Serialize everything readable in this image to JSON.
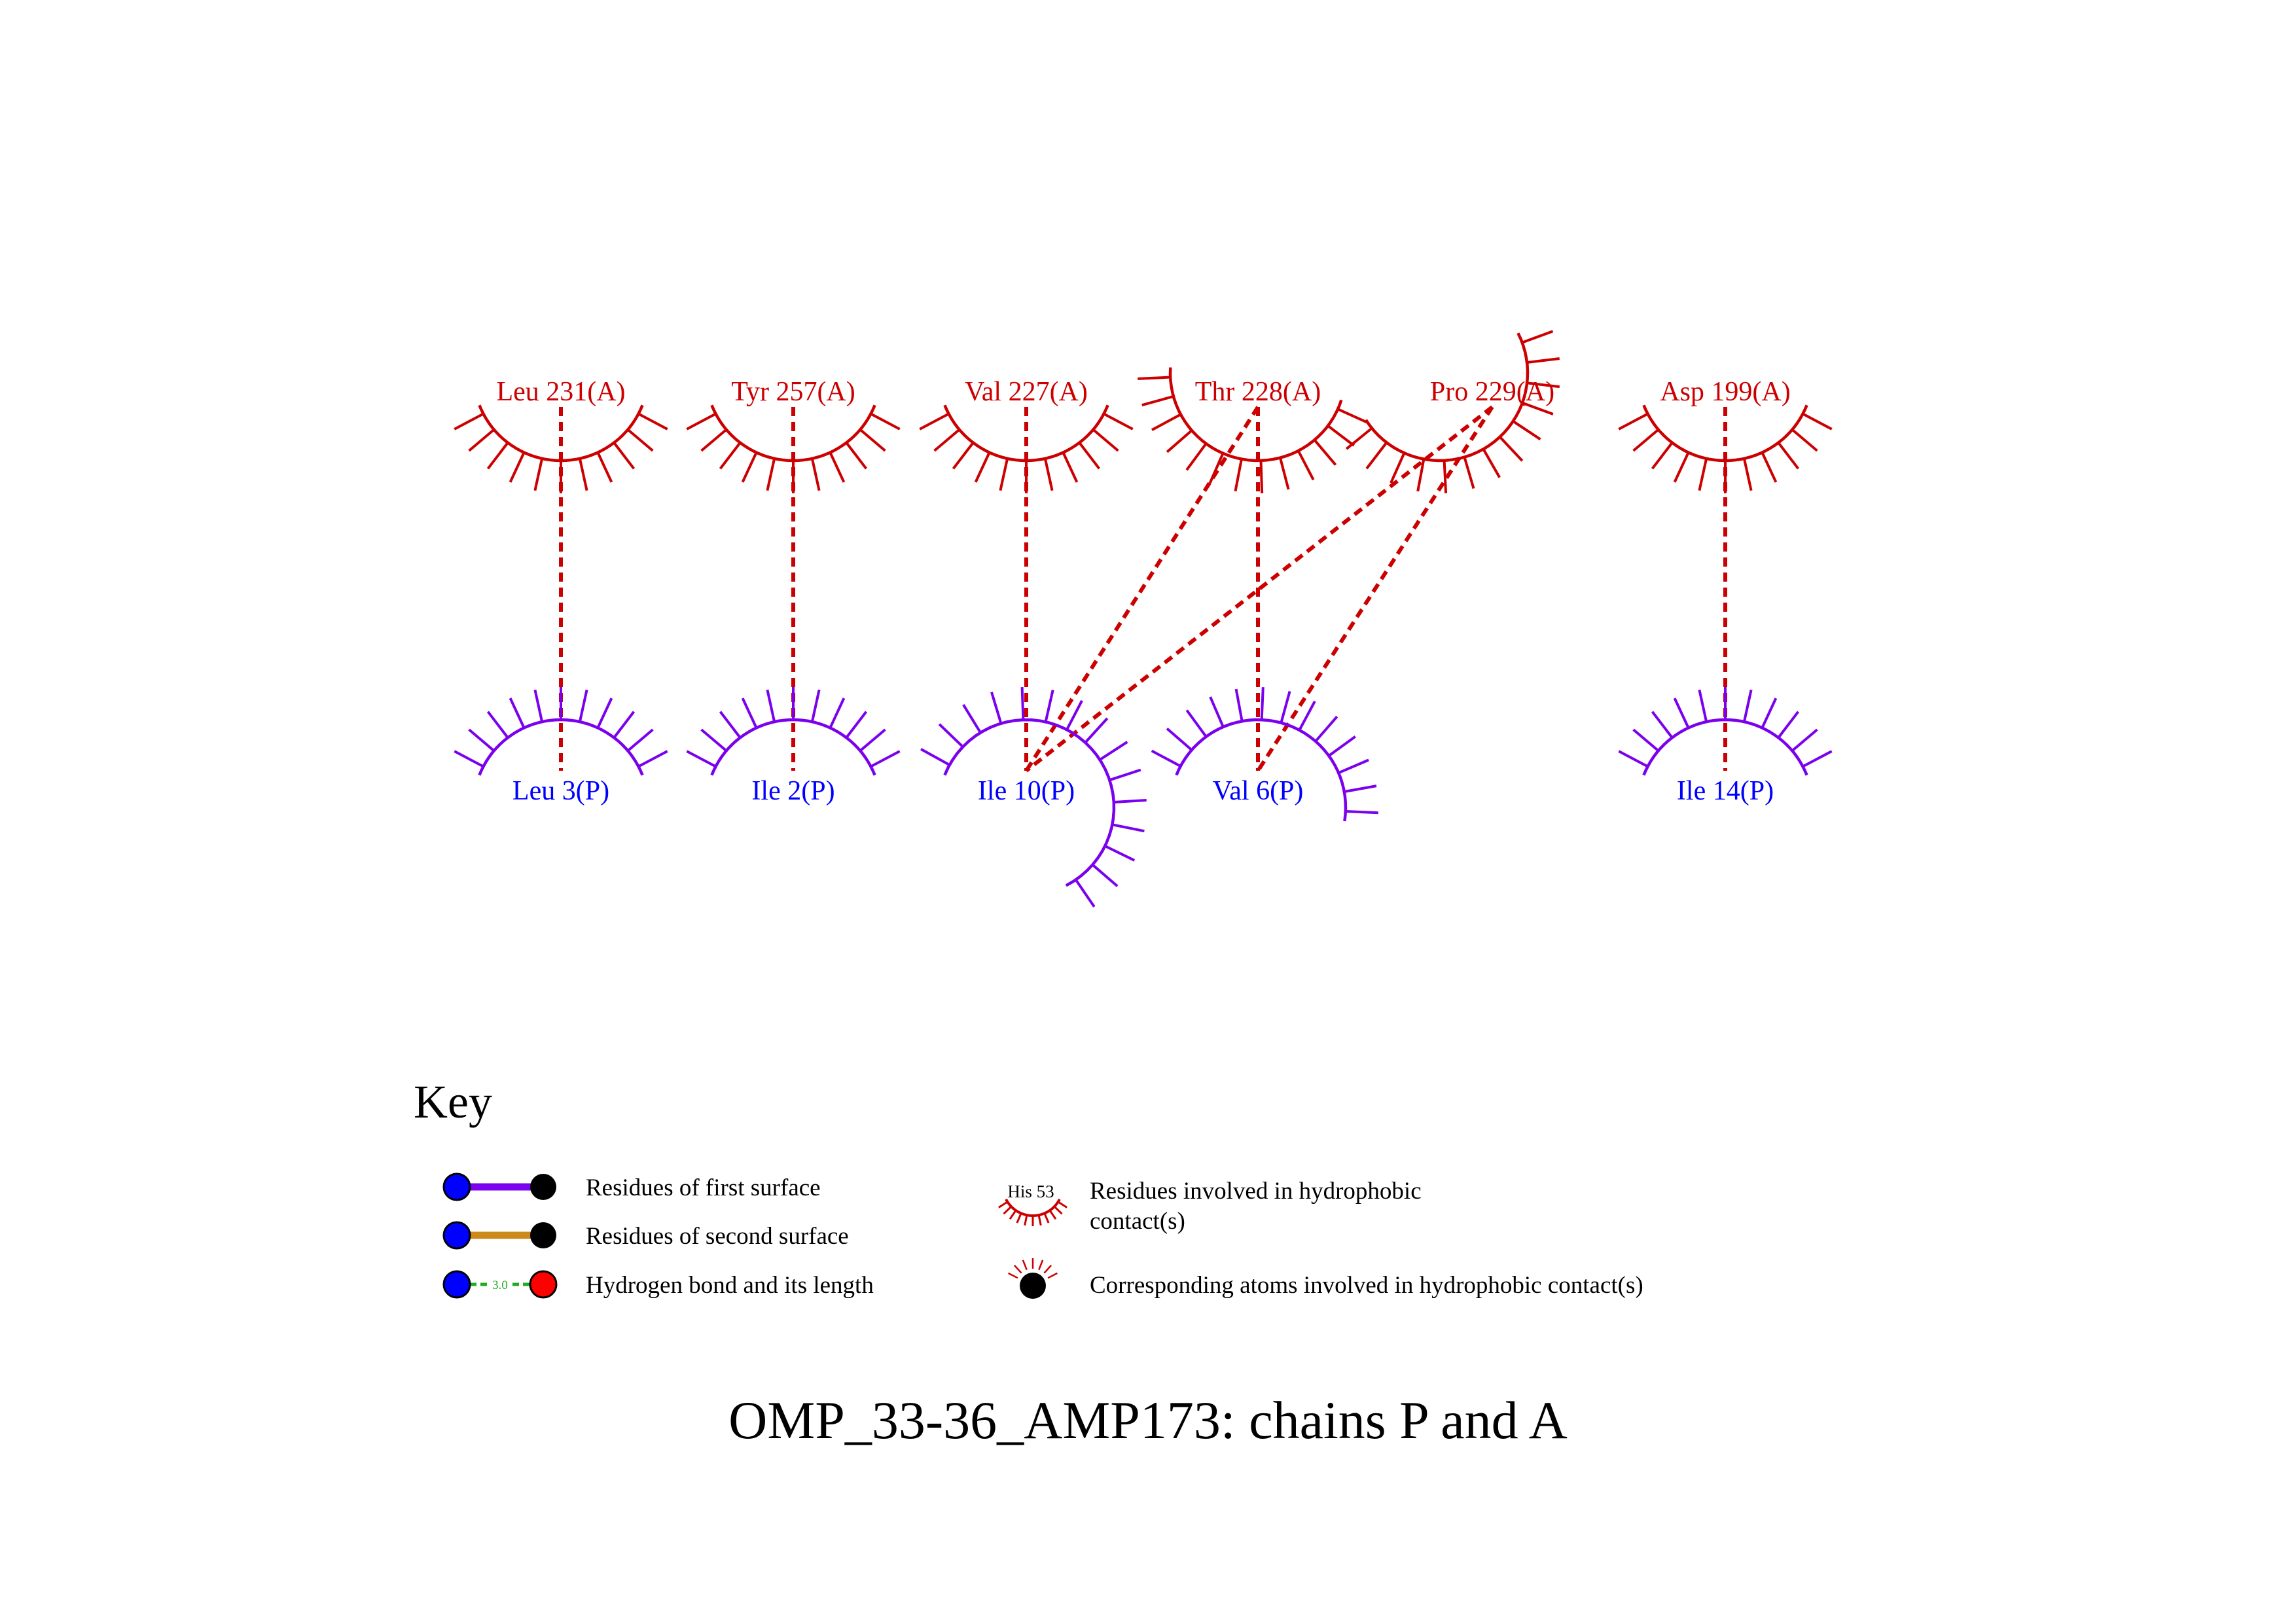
{
  "colors": {
    "chain_a": "#cc0000",
    "chain_p": "#0000ff",
    "arc_p": "#7a00ee",
    "contact_line": "#cc0000",
    "second_surface": "#cc8a1a",
    "hbond": "#22aa22",
    "black": "#000000"
  },
  "residues_a": [
    {
      "id": "leu231",
      "label": "Leu 231(A)"
    },
    {
      "id": "tyr257",
      "label": "Tyr 257(A)"
    },
    {
      "id": "val227",
      "label": "Val 227(A)"
    },
    {
      "id": "thr228",
      "label": "Thr 228(A)"
    },
    {
      "id": "pro229",
      "label": "Pro 229(A)"
    },
    {
      "id": "asp199",
      "label": "Asp 199(A)"
    }
  ],
  "residues_p": [
    {
      "id": "leu3",
      "label": "Leu 3(P)"
    },
    {
      "id": "ile2",
      "label": "Ile 2(P)"
    },
    {
      "id": "ile10",
      "label": "Ile 10(P)"
    },
    {
      "id": "val6",
      "label": "Val 6(P)"
    },
    {
      "id": "ile14",
      "label": "Ile 14(P)"
    }
  ],
  "contacts": [
    [
      "leu231",
      "leu3"
    ],
    [
      "tyr257",
      "ile2"
    ],
    [
      "val227",
      "ile10"
    ],
    [
      "thr228",
      "ile10"
    ],
    [
      "thr228",
      "val6"
    ],
    [
      "pro229",
      "ile10"
    ],
    [
      "pro229",
      "val6"
    ],
    [
      "asp199",
      "ile14"
    ]
  ],
  "key": {
    "heading": "Key",
    "first_surface": "Residues of first surface",
    "second_surface": "Residues of second surface",
    "hbond": "Hydrogen bond and its length",
    "hbond_length": "3.0",
    "hydrophobic_residue_line1": "Residues involved in hydrophobic",
    "hydrophobic_residue_line2": "contact(s)",
    "hydrophobic_example": "His 53",
    "hydrophobic_atoms": "Corresponding atoms involved in hydrophobic contact(s)"
  },
  "title": "OMP_33-36_AMP173: chains P and A"
}
